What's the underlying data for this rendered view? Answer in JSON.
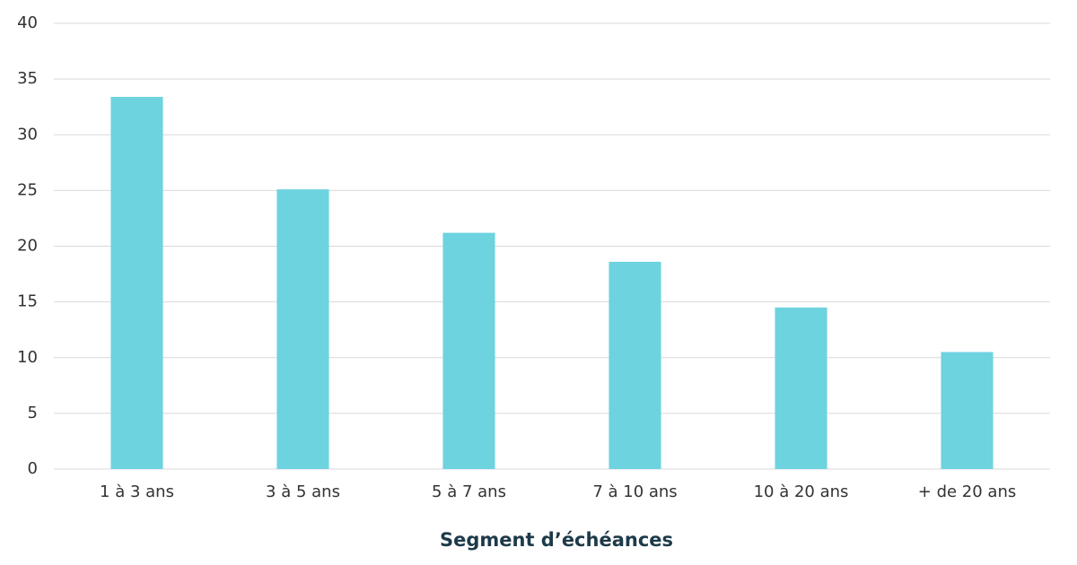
{
  "chart_data": {
    "type": "bar",
    "x_label": "Segment d’échéances",
    "categories": [
      "1 à 3 ans",
      "3 à 5 ans",
      "5 à 7 ans",
      "7 à 10 ans",
      "10 à 20 ans",
      "+ de 20 ans"
    ],
    "values": [
      33.4,
      25.1,
      21.2,
      18.6,
      14.5,
      10.5
    ],
    "color": "#6dd3df",
    "ylim": [
      0,
      40
    ],
    "yticks": [
      0,
      5,
      10,
      15,
      20,
      25,
      30,
      35,
      40
    ],
    "grid": true
  }
}
